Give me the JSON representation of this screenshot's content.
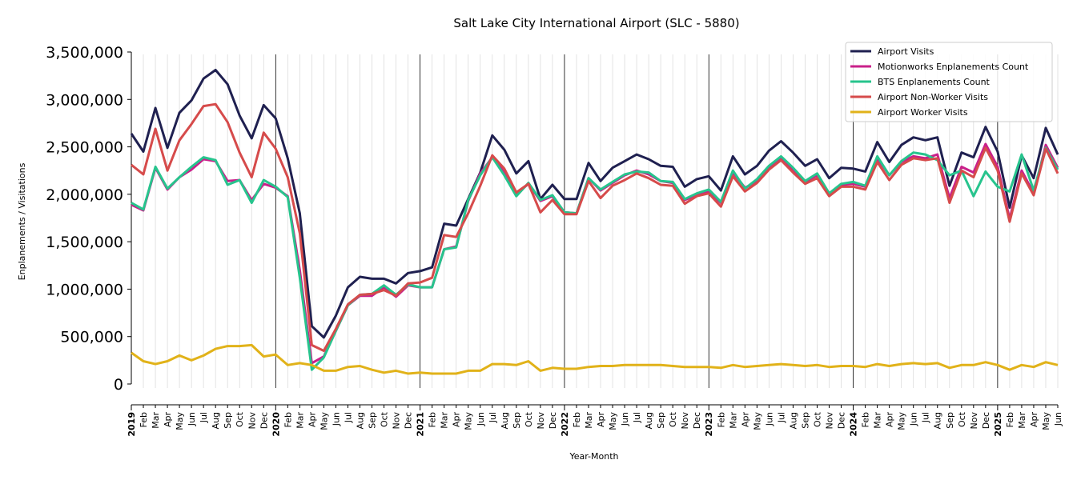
{
  "chart_data": {
    "type": "line",
    "title": "Salt Lake City International Airport (SLC - 5880)",
    "xlabel": "Year-Month",
    "ylabel": "Enplanements / Visitations",
    "ylim": [
      0,
      3500000
    ],
    "yticks": [
      "0",
      "500,000",
      "1,000,000",
      "1,500,000",
      "2,000,000",
      "2,500,000",
      "3,000,000",
      "3,500,000"
    ],
    "grid": "vertical monthly gridlines, darker at year starts",
    "legend_position": "top-right",
    "x": [
      "2019",
      "Feb",
      "Mar",
      "Apr",
      "May",
      "Jun",
      "Jul",
      "Aug",
      "Sep",
      "Oct",
      "Nov",
      "Dec",
      "2020",
      "Feb",
      "Mar",
      "Apr",
      "May",
      "Jun",
      "Jul",
      "Aug",
      "Sep",
      "Oct",
      "Nov",
      "Dec",
      "2021",
      "Feb",
      "Mar",
      "Apr",
      "May",
      "Jun",
      "Jul",
      "Aug",
      "Sep",
      "Oct",
      "Nov",
      "Dec",
      "2022",
      "Feb",
      "Mar",
      "Apr",
      "May",
      "Jun",
      "Jul",
      "Aug",
      "Sep",
      "Oct",
      "Nov",
      "Dec",
      "2023",
      "Feb",
      "Mar",
      "Apr",
      "May",
      "Jun",
      "Jul",
      "Aug",
      "Sep",
      "Oct",
      "Nov",
      "Dec",
      "2024",
      "Feb",
      "Mar",
      "Apr",
      "May",
      "Jun",
      "Jul",
      "Aug",
      "Sep",
      "Oct",
      "Nov",
      "Dec",
      "2025",
      "Feb",
      "Mar",
      "Apr",
      "May",
      "Jun"
    ],
    "series": [
      {
        "name": "Airport Visits",
        "color": "#1f2050",
        "values": [
          2640000,
          2450000,
          2910000,
          2490000,
          2860000,
          2990000,
          3220000,
          3310000,
          3160000,
          2830000,
          2590000,
          2940000,
          2800000,
          2380000,
          1800000,
          610000,
          490000,
          720000,
          1020000,
          1130000,
          1110000,
          1110000,
          1060000,
          1170000,
          1190000,
          1230000,
          1690000,
          1670000,
          1950000,
          2230000,
          2620000,
          2470000,
          2220000,
          2350000,
          1950000,
          2100000,
          1950000,
          1950000,
          2330000,
          2140000,
          2280000,
          2350000,
          2420000,
          2370000,
          2300000,
          2290000,
          2080000,
          2160000,
          2190000,
          2040000,
          2400000,
          2210000,
          2300000,
          2460000,
          2560000,
          2440000,
          2300000,
          2370000,
          2170000,
          2280000,
          2270000,
          2240000,
          2550000,
          2340000,
          2520000,
          2600000,
          2570000,
          2600000,
          2090000,
          2440000,
          2390000,
          2710000,
          2450000,
          1860000,
          2410000,
          2170000,
          2700000,
          2420000
        ]
      },
      {
        "name": "Motionworks Enplanements Count",
        "color": "#c9208a",
        "values": [
          1890000,
          1830000,
          2280000,
          2050000,
          2180000,
          2260000,
          2370000,
          2350000,
          2140000,
          2150000,
          1940000,
          2110000,
          2070000,
          1980000,
          1200000,
          220000,
          290000,
          560000,
          830000,
          930000,
          930000,
          1020000,
          920000,
          1040000,
          1020000,
          1020000,
          1420000,
          1450000,
          1930000,
          2220000,
          2390000,
          2230000,
          2000000,
          2110000,
          1930000,
          1980000,
          1810000,
          1800000,
          2170000,
          2040000,
          2120000,
          2200000,
          2250000,
          2210000,
          2140000,
          2120000,
          1940000,
          1990000,
          2030000,
          1910000,
          2230000,
          2070000,
          2130000,
          2280000,
          2380000,
          2250000,
          2130000,
          2200000,
          2010000,
          2100000,
          2110000,
          2080000,
          2380000,
          2200000,
          2340000,
          2400000,
          2380000,
          2420000,
          1960000,
          2290000,
          2230000,
          2530000,
          2290000,
          1740000,
          2250000,
          2010000,
          2520000,
          2280000
        ]
      },
      {
        "name": "BTS Enplanements Count",
        "color": "#27c48d",
        "values": [
          1910000,
          1840000,
          2290000,
          2060000,
          2180000,
          2290000,
          2390000,
          2360000,
          2100000,
          2150000,
          1910000,
          2150000,
          2080000,
          1970000,
          1120000,
          150000,
          280000,
          560000,
          830000,
          940000,
          950000,
          1040000,
          940000,
          1050000,
          1020000,
          1020000,
          1420000,
          1440000,
          1940000,
          2200000,
          2390000,
          2200000,
          1980000,
          2120000,
          1940000,
          1990000,
          1810000,
          1800000,
          2170000,
          2050000,
          2130000,
          2210000,
          2240000,
          2230000,
          2140000,
          2130000,
          1950000,
          2010000,
          2050000,
          1920000,
          2250000,
          2060000,
          2160000,
          2300000,
          2400000,
          2280000,
          2140000,
          2220000,
          2010000,
          2110000,
          2130000,
          2090000,
          2400000,
          2200000,
          2350000,
          2440000,
          2420000,
          2360000,
          2200000,
          2250000,
          1980000,
          2240000,
          2080000,
          2030000,
          2420000,
          2040000,
          2490000,
          2260000
        ]
      },
      {
        "name": "Airport Non-Worker Visits",
        "color": "#d64b4b",
        "values": [
          2310000,
          2210000,
          2690000,
          2250000,
          2570000,
          2740000,
          2930000,
          2950000,
          2760000,
          2440000,
          2180000,
          2650000,
          2480000,
          2180000,
          1590000,
          410000,
          350000,
          580000,
          840000,
          940000,
          950000,
          990000,
          930000,
          1060000,
          1070000,
          1120000,
          1570000,
          1550000,
          1800000,
          2090000,
          2410000,
          2270000,
          2020000,
          2110000,
          1810000,
          1940000,
          1790000,
          1790000,
          2140000,
          1960000,
          2090000,
          2150000,
          2220000,
          2170000,
          2100000,
          2090000,
          1900000,
          1980000,
          2010000,
          1870000,
          2190000,
          2030000,
          2120000,
          2260000,
          2360000,
          2230000,
          2110000,
          2170000,
          1980000,
          2080000,
          2080000,
          2050000,
          2340000,
          2150000,
          2310000,
          2380000,
          2360000,
          2380000,
          1910000,
          2250000,
          2180000,
          2490000,
          2250000,
          1710000,
          2220000,
          1990000,
          2480000,
          2220000
        ]
      },
      {
        "name": "Airport Worker Visits",
        "color": "#e1b219",
        "values": [
          330000,
          240000,
          210000,
          240000,
          300000,
          250000,
          300000,
          370000,
          400000,
          400000,
          410000,
          290000,
          310000,
          200000,
          220000,
          200000,
          140000,
          140000,
          180000,
          190000,
          150000,
          120000,
          140000,
          110000,
          120000,
          110000,
          110000,
          110000,
          140000,
          140000,
          210000,
          210000,
          200000,
          240000,
          140000,
          170000,
          160000,
          160000,
          180000,
          190000,
          190000,
          200000,
          200000,
          200000,
          200000,
          190000,
          180000,
          180000,
          180000,
          170000,
          200000,
          180000,
          190000,
          200000,
          210000,
          200000,
          190000,
          200000,
          180000,
          190000,
          190000,
          180000,
          210000,
          190000,
          210000,
          220000,
          210000,
          220000,
          170000,
          200000,
          200000,
          230000,
          200000,
          150000,
          200000,
          180000,
          230000,
          200000
        ]
      }
    ]
  }
}
